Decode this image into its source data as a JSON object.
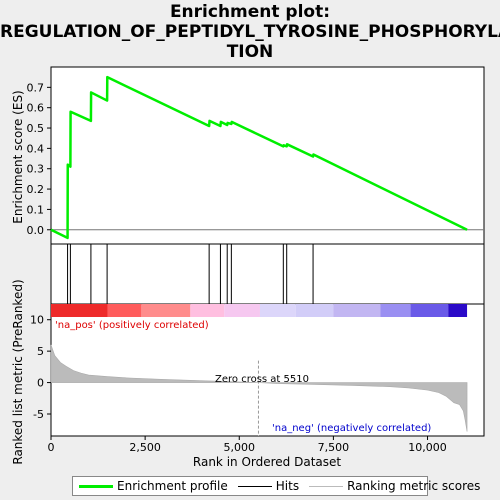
{
  "chart_data": {
    "type": "line",
    "title_lines": [
      "Enrichment plot:",
      "REGULATION_OF_PEPTIDYL_TYROSINE_PHOSPHORYLA",
      "TION"
    ],
    "es_ylabel": "Enrichment score (ES)",
    "metric_ylabel": "Ranked list metric (PreRanked)",
    "xlabel": "Rank in Ordered Dataset",
    "xlim": [
      0,
      11500
    ],
    "es_ylim": [
      -0.07,
      0.8
    ],
    "metric_ylim": [
      -8.5,
      12.5
    ],
    "x_ticks": [
      0,
      2500,
      5000,
      7500,
      10000
    ],
    "x_tick_labels": [
      "0",
      "2,500",
      "5,000",
      "7,500",
      "10,000"
    ],
    "es_ticks": [
      0.0,
      0.1,
      0.2,
      0.3,
      0.4,
      0.5,
      0.6,
      0.7
    ],
    "es_tick_labels": [
      "0.0",
      "0.1",
      "0.2",
      "0.3",
      "0.4",
      "0.5",
      "0.6",
      "0.7"
    ],
    "metric_ticks": [
      -5,
      0,
      5,
      10
    ],
    "metric_tick_labels": [
      "-5",
      "0",
      "5",
      "10"
    ],
    "series": [
      {
        "name": "Enrichment profile",
        "color": "#00ee00",
        "x": [
          0,
          440,
          445,
          515,
          520,
          1060,
          1065,
          1490,
          1495,
          4200,
          4210,
          4500,
          4510,
          4680,
          4690,
          4790,
          4800,
          6170,
          6180,
          6260,
          6270,
          6960,
          6970,
          11050
        ],
        "y": [
          0.0,
          -0.04,
          0.32,
          0.31,
          0.58,
          0.535,
          0.675,
          0.635,
          0.75,
          0.51,
          0.535,
          0.51,
          0.53,
          0.515,
          0.525,
          0.52,
          0.53,
          0.41,
          0.415,
          0.41,
          0.42,
          0.36,
          0.37,
          0.0
        ]
      }
    ],
    "hits": [
      440,
      515,
      1060,
      1490,
      4200,
      4500,
      4680,
      4790,
      6170,
      6260,
      6960
    ],
    "metric_curve": {
      "x": [
        0,
        100,
        250,
        400,
        600,
        800,
        1000,
        1500,
        2000,
        3000,
        4000,
        5000,
        5510,
        6000,
        7000,
        8000,
        9000,
        9500,
        10000,
        10300,
        10500,
        10700,
        10850,
        10950,
        11000,
        11050
      ],
      "y": [
        6.0,
        4.3,
        3.2,
        2.6,
        1.9,
        1.5,
        1.2,
        0.95,
        0.75,
        0.5,
        0.3,
        0.1,
        0.0,
        -0.15,
        -0.3,
        -0.45,
        -0.65,
        -0.85,
        -1.2,
        -1.6,
        -2.2,
        -3.2,
        -3.5,
        -4.5,
        -6.0,
        -7.8
      ]
    },
    "color_bar": {
      "breaks": [
        0,
        1500,
        2400,
        3700,
        4600,
        5550,
        6500,
        7500,
        8750,
        9550,
        10550,
        11050
      ],
      "colors": [
        "#ee2a2a",
        "#ff5c5c",
        "#ff8c8c",
        "#ffbfe0",
        "#f6c8f0",
        "#dcd6fa",
        "#d2cdf8",
        "#c2b6f2",
        "#9a8ff2",
        "#6a5ae8",
        "#2a0ac8"
      ]
    },
    "zero_cross": 5510,
    "annotations": {
      "pos_label": "'na_pos' (positively correlated)",
      "neg_label": "'na_neg' (negatively correlated)",
      "zero_label": "Zero cross at 5510"
    },
    "legend": [
      {
        "label": "Enrichment profile",
        "color": "#00ee00"
      },
      {
        "label": "Hits",
        "color": "#000000"
      },
      {
        "label": "Ranking metric scores",
        "color": "#bbbbbb"
      }
    ]
  }
}
